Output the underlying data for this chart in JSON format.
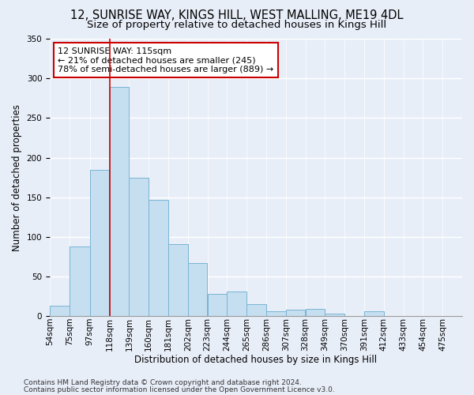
{
  "title1": "12, SUNRISE WAY, KINGS HILL, WEST MALLING, ME19 4DL",
  "title2": "Size of property relative to detached houses in Kings Hill",
  "xlabel": "Distribution of detached houses by size in Kings Hill",
  "ylabel": "Number of detached properties",
  "footer1": "Contains HM Land Registry data © Crown copyright and database right 2024.",
  "footer2": "Contains public sector information licensed under the Open Government Licence v3.0.",
  "annotation_line1": "12 SUNRISE WAY: 115sqm",
  "annotation_line2": "← 21% of detached houses are smaller (245)",
  "annotation_line3": "78% of semi-detached houses are larger (889) →",
  "bar_labels": [
    "54sqm",
    "75sqm",
    "97sqm",
    "118sqm",
    "139sqm",
    "160sqm",
    "181sqm",
    "202sqm",
    "223sqm",
    "244sqm",
    "265sqm",
    "286sqm",
    "307sqm",
    "328sqm",
    "349sqm",
    "370sqm",
    "391sqm",
    "412sqm",
    "433sqm",
    "454sqm",
    "475sqm"
  ],
  "bar_edges": [
    54,
    75,
    97,
    118,
    139,
    160,
    181,
    202,
    223,
    244,
    265,
    286,
    307,
    328,
    349,
    370,
    391,
    412,
    433,
    454,
    475
  ],
  "bar_values": [
    13,
    88,
    185,
    289,
    175,
    147,
    91,
    67,
    28,
    31,
    15,
    6,
    8,
    9,
    3,
    0,
    6,
    0,
    0,
    0,
    0
  ],
  "bar_color": "#c5dff0",
  "bar_edgecolor": "#7ab3d4",
  "marker_color": "#cc0000",
  "background_color": "#e8eef8",
  "plot_background": "#e8eef8",
  "ylim": [
    0,
    350
  ],
  "vline_x": 118,
  "annotation_box_edgecolor": "#cc0000",
  "title1_fontsize": 10.5,
  "title2_fontsize": 9.5,
  "axis_label_fontsize": 8.5,
  "tick_fontsize": 7.5,
  "footer_fontsize": 6.5,
  "ann_fontsize": 8
}
